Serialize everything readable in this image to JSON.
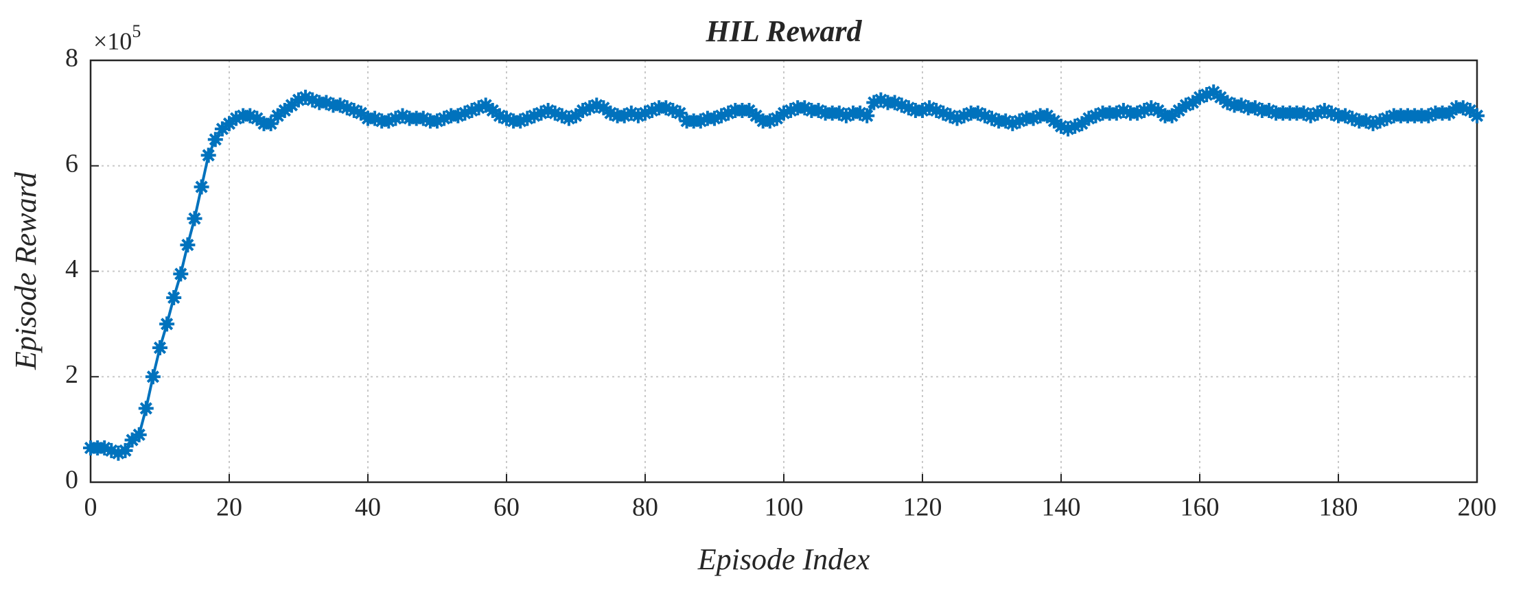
{
  "chart_data": {
    "type": "line",
    "title": "HIL Reward",
    "xlabel": "Episode Index",
    "ylabel": "Episode Reward",
    "y_multiplier": {
      "base": "×10",
      "exponent": "5"
    },
    "xlim": [
      0,
      200
    ],
    "xticks": [
      0,
      20,
      40,
      60,
      80,
      100,
      120,
      140,
      160,
      180,
      200
    ],
    "ylim": [
      0,
      8
    ],
    "yticks": [
      0,
      2,
      4,
      6,
      8
    ],
    "grid": true,
    "x": [
      0,
      1,
      2,
      3,
      4,
      5,
      6,
      7,
      8,
      9,
      10,
      11,
      12,
      13,
      14,
      15,
      16,
      17,
      18,
      19,
      20,
      21,
      22,
      23,
      24,
      25,
      26,
      27,
      28,
      29,
      30,
      31,
      32,
      33,
      34,
      35,
      36,
      37,
      38,
      39,
      40,
      41,
      42,
      43,
      44,
      45,
      46,
      47,
      48,
      49,
      50,
      51,
      52,
      53,
      54,
      55,
      56,
      57,
      58,
      59,
      60,
      61,
      62,
      63,
      64,
      65,
      66,
      67,
      68,
      69,
      70,
      71,
      72,
      73,
      74,
      75,
      76,
      77,
      78,
      79,
      80,
      81,
      82,
      83,
      84,
      85,
      86,
      87,
      88,
      89,
      90,
      91,
      92,
      93,
      94,
      95,
      96,
      97,
      98,
      99,
      100,
      101,
      102,
      103,
      104,
      105,
      106,
      107,
      108,
      109,
      110,
      111,
      112,
      113,
      114,
      115,
      116,
      117,
      118,
      119,
      120,
      121,
      122,
      123,
      124,
      125,
      126,
      127,
      128,
      129,
      130,
      131,
      132,
      133,
      134,
      135,
      136,
      137,
      138,
      139,
      140,
      141,
      142,
      143,
      144,
      145,
      146,
      147,
      148,
      149,
      150,
      151,
      152,
      153,
      154,
      155,
      156,
      157,
      158,
      159,
      160,
      161,
      162,
      163,
      164,
      165,
      166,
      167,
      168,
      169,
      170,
      171,
      172,
      173,
      174,
      175,
      176,
      177,
      178,
      179,
      180,
      181,
      182,
      183,
      184,
      185,
      186,
      187,
      188,
      189,
      190,
      191,
      192,
      193,
      194,
      195,
      196,
      197,
      198,
      199,
      200
    ],
    "series": [
      {
        "name": "Episode Reward",
        "color": "#0072bd",
        "values": [
          0.65,
          0.65,
          0.65,
          0.6,
          0.55,
          0.6,
          0.8,
          0.9,
          1.4,
          2.0,
          2.55,
          3.0,
          3.5,
          3.95,
          4.5,
          5.0,
          5.6,
          6.2,
          6.5,
          6.7,
          6.8,
          6.9,
          6.95,
          6.95,
          6.9,
          6.8,
          6.8,
          6.95,
          7.05,
          7.15,
          7.25,
          7.3,
          7.25,
          7.2,
          7.2,
          7.15,
          7.15,
          7.1,
          7.05,
          7.0,
          6.9,
          6.9,
          6.85,
          6.85,
          6.9,
          6.95,
          6.9,
          6.9,
          6.9,
          6.85,
          6.85,
          6.9,
          6.95,
          6.95,
          7.0,
          7.05,
          7.1,
          7.15,
          7.05,
          6.95,
          6.9,
          6.85,
          6.85,
          6.9,
          6.95,
          7.0,
          7.05,
          7.0,
          6.95,
          6.9,
          6.95,
          7.05,
          7.1,
          7.15,
          7.1,
          7.0,
          6.95,
          6.95,
          7.0,
          6.95,
          7.0,
          7.05,
          7.1,
          7.1,
          7.05,
          7.0,
          6.85,
          6.85,
          6.85,
          6.9,
          6.9,
          6.95,
          7.0,
          7.05,
          7.05,
          7.05,
          6.95,
          6.85,
          6.85,
          6.9,
          7.0,
          7.05,
          7.1,
          7.1,
          7.05,
          7.05,
          7.0,
          7.0,
          7.0,
          6.95,
          7.0,
          7.0,
          6.95,
          7.2,
          7.25,
          7.2,
          7.2,
          7.15,
          7.1,
          7.05,
          7.05,
          7.1,
          7.05,
          7.0,
          6.95,
          6.9,
          6.95,
          7.0,
          7.0,
          6.95,
          6.9,
          6.85,
          6.85,
          6.8,
          6.85,
          6.9,
          6.9,
          6.95,
          6.95,
          6.85,
          6.75,
          6.7,
          6.75,
          6.8,
          6.9,
          6.95,
          7.0,
          7.0,
          7.0,
          7.05,
          7.0,
          7.0,
          7.05,
          7.1,
          7.05,
          6.95,
          6.95,
          7.05,
          7.15,
          7.2,
          7.3,
          7.35,
          7.4,
          7.3,
          7.2,
          7.15,
          7.15,
          7.1,
          7.1,
          7.05,
          7.05,
          7.0,
          7.0,
          7.0,
          7.0,
          7.0,
          6.95,
          7.0,
          7.05,
          7.0,
          6.95,
          6.95,
          6.9,
          6.85,
          6.85,
          6.8,
          6.85,
          6.9,
          6.95,
          6.95,
          6.95,
          6.95,
          6.95,
          6.95,
          7.0,
          7.0,
          7.0,
          7.1,
          7.1,
          7.05,
          6.95
        ]
      }
    ]
  }
}
